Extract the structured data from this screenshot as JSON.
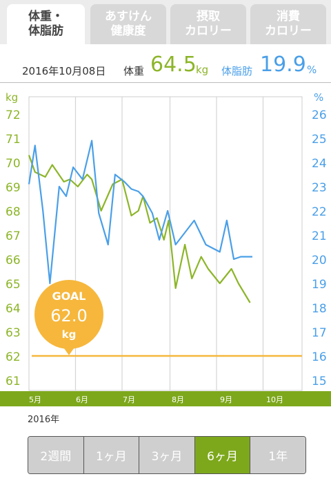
{
  "tabs": [
    {
      "line1": "体重・",
      "line2": "体脂肪",
      "active": true
    },
    {
      "line1": "あすけん",
      "line2": "健康度",
      "active": false
    },
    {
      "line1": "摂取",
      "line2": "カロリー",
      "active": false
    },
    {
      "line1": "消費",
      "line2": "カロリー",
      "active": false
    }
  ],
  "summary": {
    "date": "2016年10月08日",
    "weight_label": "体重",
    "weight_value": "64.5",
    "weight_unit": "kg",
    "fat_label": "体脂肪",
    "fat_value": "19.9",
    "fat_unit": "%"
  },
  "goal": {
    "label": "GOAL",
    "value": "62.0",
    "unit": "kg"
  },
  "months": [
    "5月",
    "6月",
    "7月",
    "8月",
    "9月",
    "10月"
  ],
  "year_label": "2016年",
  "periods": [
    {
      "label": "2週間",
      "active": false
    },
    {
      "label": "1ヶ月",
      "active": false
    },
    {
      "label": "3ヶ月",
      "active": false
    },
    {
      "label": "6ヶ月",
      "active": true
    },
    {
      "label": "1年",
      "active": false
    }
  ],
  "colors": {
    "weight": "#8cb528",
    "fat": "#4a9fe8",
    "goal": "#f6b73c",
    "month_bar": "#7da81c"
  },
  "chart_data": {
    "type": "line",
    "left_axis": {
      "label": "kg",
      "ylim": [
        61,
        72
      ],
      "ticks": [
        "61",
        "62",
        "63",
        "64",
        "65",
        "66",
        "67",
        "68",
        "69",
        "70",
        "71",
        "72"
      ]
    },
    "right_axis": {
      "label": "%",
      "ylim": [
        15,
        26
      ],
      "ticks": [
        "15",
        "16",
        "17",
        "18",
        "19",
        "20",
        "21",
        "22",
        "23",
        "24",
        "25",
        "26"
      ]
    },
    "x_categories": [
      "5月",
      "6月",
      "7月",
      "8月",
      "9月",
      "10月"
    ],
    "goal_line": 62.0,
    "series": [
      {
        "axis": "left",
        "x": [
          0.0,
          0.13,
          0.35,
          0.5,
          0.75,
          0.88,
          1.05,
          1.25,
          1.35,
          1.55,
          1.8,
          2.0,
          2.2,
          2.35,
          2.45,
          2.6,
          2.75,
          2.9,
          3.0,
          3.15,
          3.35,
          3.5,
          3.7,
          3.85,
          4.1,
          4.35,
          4.5,
          4.75
        ],
        "values": [
          70.3,
          69.6,
          69.4,
          69.9,
          69.2,
          69.3,
          69.0,
          69.5,
          69.3,
          68.0,
          69.1,
          69.3,
          67.8,
          68.0,
          68.6,
          67.5,
          67.7,
          66.8,
          67.6,
          64.8,
          66.6,
          65.2,
          66.1,
          65.6,
          65.0,
          65.6,
          65.0,
          64.2
        ]
      },
      {
        "axis": "right",
        "x": [
          0.0,
          0.13,
          0.3,
          0.45,
          0.65,
          0.8,
          0.95,
          1.15,
          1.35,
          1.5,
          1.7,
          1.85,
          2.05,
          2.2,
          2.35,
          2.45,
          2.65,
          2.8,
          2.98,
          3.15,
          3.35,
          3.55,
          3.8,
          4.1,
          4.25,
          4.4,
          4.55,
          4.8
        ],
        "values": [
          23.1,
          24.7,
          22.0,
          19.0,
          23.0,
          22.6,
          23.8,
          23.3,
          24.9,
          21.9,
          20.6,
          23.5,
          23.2,
          22.9,
          22.8,
          22.6,
          21.9,
          20.8,
          22.0,
          20.6,
          21.1,
          21.6,
          20.6,
          20.3,
          21.6,
          20.0,
          20.1,
          20.1
        ]
      }
    ]
  }
}
